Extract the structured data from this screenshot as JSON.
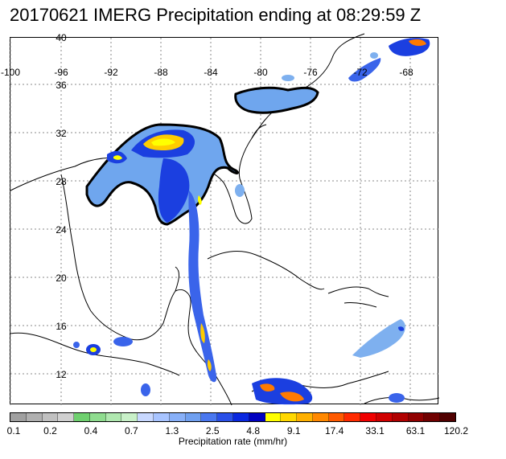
{
  "title": "20170621 IMERG Precipitation ending at 08:29:59 Z",
  "map": {
    "lon_labels": [
      "-100",
      "-96",
      "-92",
      "-88",
      "-84",
      "-80",
      "-76",
      "-72",
      "-68"
    ],
    "lat_labels": [
      "40",
      "36",
      "32",
      "28",
      "24",
      "20",
      "16",
      "12"
    ]
  },
  "colorbar": {
    "label": "Precipitation rate (mm/hr)",
    "tick_labels": [
      "0.1",
      "0.2",
      "0.4",
      "0.7",
      "1.3",
      "2.5",
      "4.8",
      "9.1",
      "17.4",
      "33.1",
      "63.1",
      "120.2"
    ],
    "colors": [
      "#a0a0a0",
      "#b0b0b0",
      "#c0c0c0",
      "#d0d0d0",
      "#6fd06f",
      "#8fdc8f",
      "#b0e8b0",
      "#c8f0c8",
      "#c8d8ff",
      "#a8c4ff",
      "#88b0f8",
      "#70a0f0",
      "#4a78f0",
      "#2a50e8",
      "#0a28e0",
      "#0000c0",
      "#ffff00",
      "#ffd800",
      "#ffb000",
      "#ff8800",
      "#ff5a00",
      "#ff2a00",
      "#f00000",
      "#d00000",
      "#b00000",
      "#900000",
      "#700000",
      "#500000"
    ]
  }
}
